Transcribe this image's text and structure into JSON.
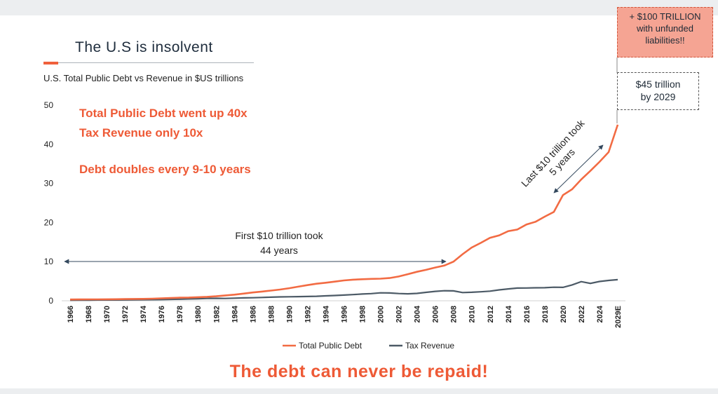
{
  "title": "The U.S is insolvent",
  "subtitle": "U.S. Total Public Debt vs Revenue in $US trillions",
  "highlights": [
    "Total Public Debt went up 40x",
    "Tax Revenue only 10x",
    "Debt doubles every 9-10 years"
  ],
  "callout_top": [
    "+ $100 TRILLION",
    "with unfunded",
    "liabilities!!"
  ],
  "callout_45": [
    "$45 trillion",
    "by 2029"
  ],
  "annotation_first": [
    "First $10 trillion took",
    "44 years"
  ],
  "annotation_last": [
    "Last $10 trillion took",
    "5 years"
  ],
  "bottom_text": "The debt can never be repaid!",
  "colors": {
    "debt": "#f26b43",
    "revenue": "#4c5a66",
    "accent": "#ee5a36"
  },
  "chart_data": {
    "type": "line",
    "ylim": [
      0,
      50
    ],
    "yticks": [
      0,
      10,
      20,
      30,
      40,
      50
    ],
    "xtick_labels": [
      "1966",
      "1968",
      "1970",
      "1972",
      "1974",
      "1976",
      "1978",
      "1980",
      "1982",
      "1984",
      "1986",
      "1988",
      "1990",
      "1992",
      "1994",
      "1996",
      "1998",
      "2000",
      "2002",
      "2004",
      "2006",
      "2008",
      "2010",
      "2012",
      "2014",
      "2016",
      "2018",
      "2020",
      "2022",
      "2024",
      "2029E"
    ],
    "categories": [
      "1966",
      "1967",
      "1968",
      "1969",
      "1970",
      "1971",
      "1972",
      "1973",
      "1974",
      "1975",
      "1976",
      "1977",
      "1978",
      "1979",
      "1980",
      "1981",
      "1982",
      "1983",
      "1984",
      "1985",
      "1986",
      "1987",
      "1988",
      "1989",
      "1990",
      "1991",
      "1992",
      "1993",
      "1994",
      "1995",
      "1996",
      "1997",
      "1998",
      "1999",
      "2000",
      "2001",
      "2002",
      "2003",
      "2004",
      "2005",
      "2006",
      "2007",
      "2008",
      "2009",
      "2010",
      "2011",
      "2012",
      "2013",
      "2014",
      "2015",
      "2016",
      "2017",
      "2018",
      "2019",
      "2020",
      "2021",
      "2022",
      "2023",
      "2024",
      "2025",
      "2029E"
    ],
    "legend_position": "bottom",
    "series": [
      {
        "name": "Total Public Debt",
        "values": [
          0.32,
          0.34,
          0.35,
          0.35,
          0.37,
          0.4,
          0.43,
          0.46,
          0.48,
          0.54,
          0.62,
          0.7,
          0.78,
          0.83,
          0.91,
          1.0,
          1.14,
          1.37,
          1.56,
          1.82,
          2.12,
          2.35,
          2.6,
          2.86,
          3.2,
          3.6,
          4.0,
          4.35,
          4.6,
          4.9,
          5.2,
          5.4,
          5.5,
          5.6,
          5.65,
          5.8,
          6.2,
          6.8,
          7.4,
          7.9,
          8.5,
          9.0,
          10.0,
          11.9,
          13.6,
          14.8,
          16.1,
          16.7,
          17.8,
          18.2,
          19.5,
          20.2,
          21.5,
          22.7,
          27.0,
          28.5,
          31.0,
          33.2,
          35.5,
          38.0,
          45.0
        ]
      },
      {
        "name": "Tax Revenue",
        "values": [
          0.13,
          0.15,
          0.15,
          0.19,
          0.19,
          0.19,
          0.21,
          0.23,
          0.26,
          0.28,
          0.3,
          0.36,
          0.4,
          0.46,
          0.52,
          0.6,
          0.62,
          0.6,
          0.67,
          0.73,
          0.77,
          0.85,
          0.91,
          0.99,
          1.03,
          1.05,
          1.09,
          1.15,
          1.26,
          1.35,
          1.45,
          1.58,
          1.72,
          1.83,
          2.03,
          1.99,
          1.85,
          1.78,
          1.88,
          2.15,
          2.41,
          2.57,
          2.52,
          2.1,
          2.16,
          2.3,
          2.45,
          2.78,
          3.02,
          3.25,
          3.27,
          3.32,
          3.33,
          3.46,
          3.42,
          4.05,
          4.9,
          4.44,
          4.92,
          5.2,
          5.4
        ]
      }
    ]
  }
}
